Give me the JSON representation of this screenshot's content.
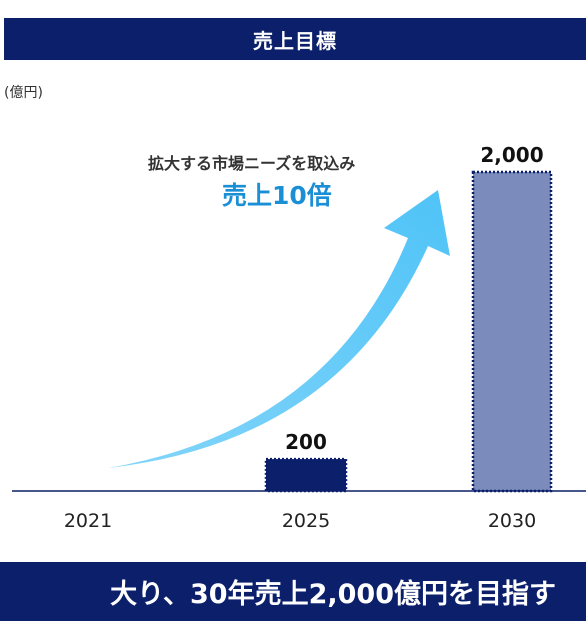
{
  "header": {
    "title": "売上目標"
  },
  "unit_label": "(億円)",
  "annotation": {
    "text": "拡大する市場ニーズを取込み",
    "emphasis": "売上10倍"
  },
  "footer": {
    "text": "大り、30年売上2,000億円を目指す"
  },
  "colors": {
    "header_bg": "#0b1f6b",
    "bar_2025": "#0b1f6b",
    "bar_2030": "#7b8bbb",
    "arrow": "#4fc3f7",
    "emphasis": "#1a8fd6"
  },
  "chart_data": {
    "type": "bar",
    "categories": [
      "2021",
      "2025",
      "2030"
    ],
    "values": [
      null,
      200,
      2000
    ],
    "data_labels": [
      "",
      "200",
      "2,000"
    ],
    "ylim": [
      0,
      2000
    ],
    "grid": false,
    "legend": "none"
  }
}
